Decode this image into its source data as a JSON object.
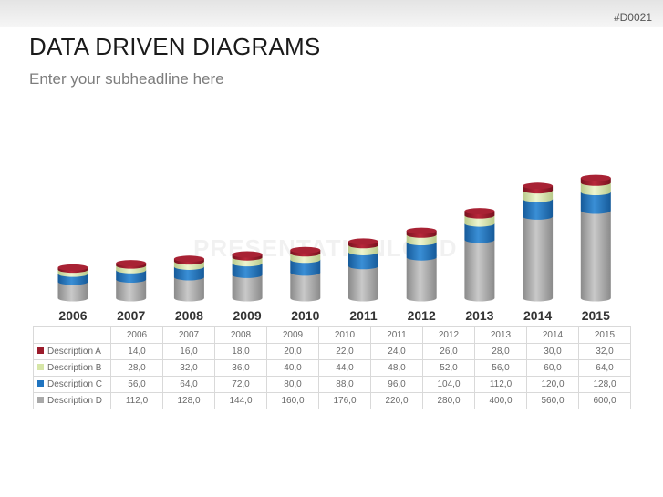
{
  "header": {
    "code": "#D0021",
    "title": "DATA DRIVEN DIAGRAMS",
    "subtitle": "Enter your subheadline here",
    "watermark": "PRESENTATIONLOAD"
  },
  "chart_data": {
    "type": "bar",
    "stacked": true,
    "categories": [
      "2006",
      "2007",
      "2008",
      "2009",
      "2010",
      "2011",
      "2012",
      "2013",
      "2014",
      "2015"
    ],
    "table_categories": [
      "2006",
      "2007",
      "2008",
      "2009",
      "2010",
      "2011",
      "2012",
      "2013",
      "2014",
      "2015"
    ],
    "series": [
      {
        "name": "Description A",
        "color": "#9b1b2b",
        "values": [
          14.0,
          16.0,
          18.0,
          20.0,
          22.0,
          24.0,
          26.0,
          28.0,
          30.0,
          32.0
        ],
        "labels": [
          "14,0",
          "16,0",
          "18,0",
          "20,0",
          "22,0",
          "24,0",
          "26,0",
          "28,0",
          "30,0",
          "32,0"
        ]
      },
      {
        "name": "Description B",
        "color": "#d6e6a7",
        "values": [
          28.0,
          32.0,
          36.0,
          40.0,
          44.0,
          48.0,
          52.0,
          56.0,
          60.0,
          64.0
        ],
        "labels": [
          "28,0",
          "32,0",
          "36,0",
          "40,0",
          "44,0",
          "48,0",
          "52,0",
          "56,0",
          "60,0",
          "64,0"
        ]
      },
      {
        "name": "Description C",
        "color": "#1f74c0",
        "values": [
          56.0,
          64.0,
          72.0,
          80.0,
          88.0,
          96.0,
          104.0,
          112.0,
          120.0,
          128.0
        ],
        "labels": [
          "56,0",
          "64,0",
          "72,0",
          "80,0",
          "88,0",
          "96,0",
          "104,0",
          "112,0",
          "120,0",
          "128,0"
        ]
      },
      {
        "name": "Description D",
        "color": "#a9a9a9",
        "values": [
          112.0,
          128.0,
          144.0,
          160.0,
          176.0,
          220.0,
          280.0,
          400.0,
          560.0,
          600.0
        ],
        "labels": [
          "112,0",
          "128,0",
          "144,0",
          "160,0",
          "176,0",
          "220,0",
          "280,0",
          "400,0",
          "560,0",
          "600,0"
        ]
      }
    ],
    "title": "",
    "xlabel": "",
    "ylabel": "",
    "grid": false,
    "legend": "table-below"
  }
}
